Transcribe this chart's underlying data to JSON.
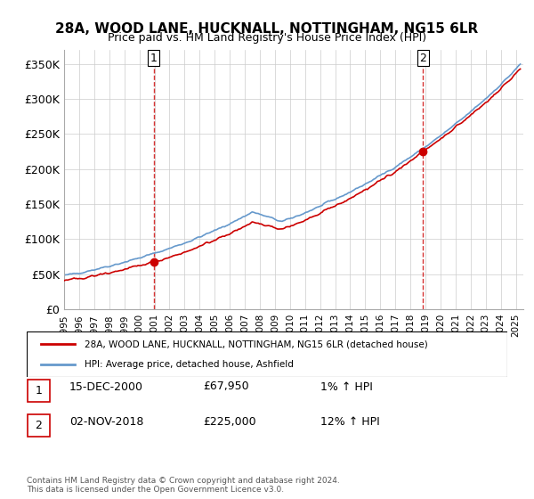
{
  "title": "28A, WOOD LANE, HUCKNALL, NOTTINGHAM, NG15 6LR",
  "subtitle": "Price paid vs. HM Land Registry's House Price Index (HPI)",
  "ylabel_ticks": [
    "£0",
    "£50K",
    "£100K",
    "£150K",
    "£200K",
    "£250K",
    "£300K",
    "£350K"
  ],
  "ytick_values": [
    0,
    50000,
    100000,
    150000,
    200000,
    250000,
    300000,
    350000
  ],
  "ylim": [
    0,
    370000
  ],
  "xlim_start": 1995.0,
  "xlim_end": 2025.5,
  "sale1_x": 2000.958,
  "sale1_y": 67950,
  "sale1_label": "1",
  "sale2_x": 2018.836,
  "sale2_y": 225000,
  "sale2_label": "2",
  "legend_line1": "28A, WOOD LANE, HUCKNALL, NOTTINGHAM, NG15 6LR (detached house)",
  "legend_line2": "HPI: Average price, detached house, Ashfield",
  "table_row1": [
    "1",
    "15-DEC-2000",
    "£67,950",
    "1% ↑ HPI"
  ],
  "table_row2": [
    "2",
    "02-NOV-2018",
    "£225,000",
    "12% ↑ HPI"
  ],
  "footer": "Contains HM Land Registry data © Crown copyright and database right 2024.\nThis data is licensed under the Open Government Licence v3.0.",
  "line_color_red": "#cc0000",
  "line_color_blue": "#6699cc",
  "background_color": "#ffffff",
  "grid_color": "#cccccc",
  "vline_color": "#cc0000",
  "marker_color": "#cc0000"
}
